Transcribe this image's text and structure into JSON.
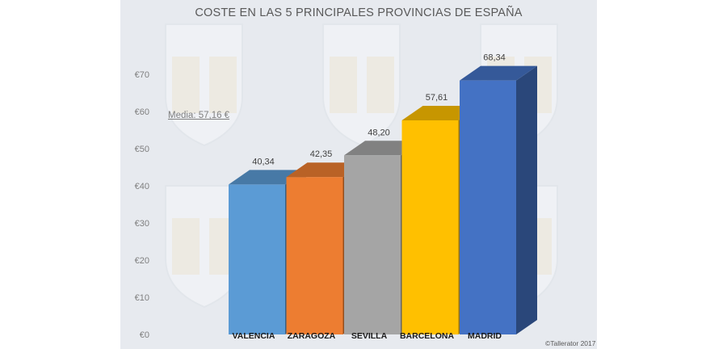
{
  "chart_data": {
    "type": "bar",
    "title": "COSTE EN LAS 5 PRINCIPALES PROVINCIAS DE ESPAÑA",
    "categories": [
      "VALENCIA",
      "ZARAGOZA",
      "SEVILLA",
      "BARCELONA",
      "MADRID"
    ],
    "values": [
      40.34,
      42.35,
      48.2,
      57.61,
      68.34
    ],
    "value_labels": [
      "40,34",
      "42,35",
      "48,20",
      "57,61",
      "68,34"
    ],
    "bar_colors": [
      "#5b9bd5",
      "#ed7d31",
      "#a5a5a5",
      "#ffc000",
      "#4472c4"
    ],
    "ylim": [
      0,
      70
    ],
    "yticks": [
      0,
      10,
      20,
      30,
      40,
      50,
      60,
      70
    ],
    "ytick_labels": [
      "€0",
      "€10",
      "€20",
      "€30",
      "€40",
      "€50",
      "€60",
      "€70"
    ],
    "xlabel": "",
    "ylabel": "",
    "grid": false,
    "annotation": "Media: 57,16 €",
    "credit": "©Tallerator 2017"
  }
}
